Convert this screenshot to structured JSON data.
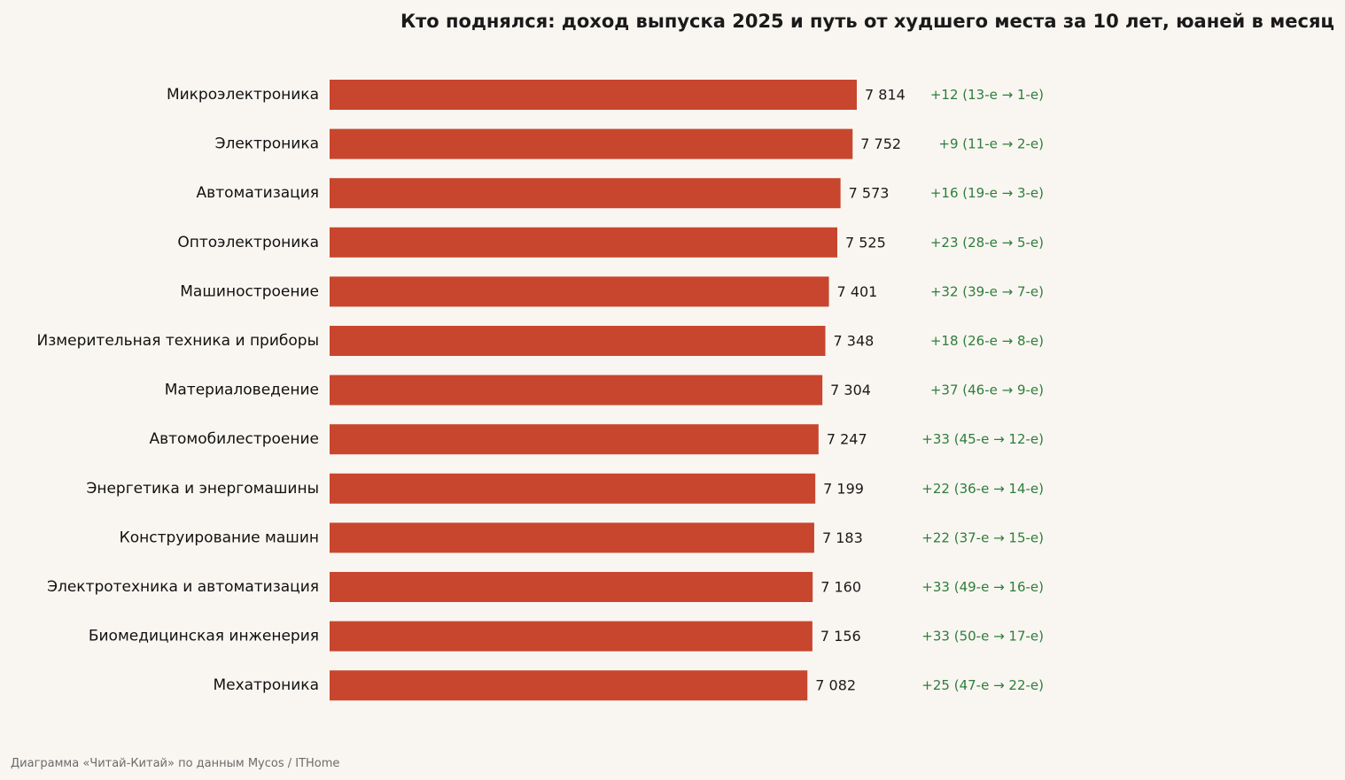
{
  "chart_data": {
    "type": "bar",
    "orientation": "horizontal",
    "title": "Кто поднялся: доход выпуска 2025 и путь от худшего места за 10 лет, юаней в месяц",
    "categories": [
      "Микроэлектроника",
      "Электроника",
      "Автоматизация",
      "Оптоэлектроника",
      "Машиностроение",
      "Измерительная техника и приборы",
      "Материаловедение",
      "Автомобилестроение",
      "Энергетика и энергомашины",
      "Конструирование машин",
      "Электротехника и автоматизация",
      "Биомедицинская инженерия",
      "Мехатроника"
    ],
    "values": [
      7814,
      7752,
      7573,
      7525,
      7401,
      7348,
      7304,
      7247,
      7199,
      7183,
      7160,
      7156,
      7082
    ],
    "value_labels": [
      "7 814",
      "7 752",
      "7 573",
      "7 525",
      "7 401",
      "7 348",
      "7 304",
      "7 247",
      "7 199",
      "7 183",
      "7 160",
      "7 156",
      "7 082"
    ],
    "annotations": [
      "+12 (13-е → 1-е)",
      "+9 (11-е → 2-е)",
      "+16 (19-е → 3-е)",
      "+23 (28-е → 5-е)",
      "+32 (39-е → 7-е)",
      "+18 (26-е → 8-е)",
      "+37 (46-е → 9-е)",
      "+33 (45-е → 12-е)",
      "+22 (36-е → 14-е)",
      "+22 (37-е → 15-е)",
      "+33 (49-е → 16-е)",
      "+33 (50-е → 17-е)",
      "+25 (47-е → 22-е)"
    ],
    "xlim": [
      0,
      10600
    ],
    "grid": false,
    "legend": "none",
    "source": "Диаграмма «Читай-Китай» по данным Mycos / ITHome",
    "colors": {
      "bar": "#c8462e",
      "annotation": "#2e7d3c",
      "background": "#f9f6f1",
      "text": "#1a1a1a",
      "source": "#6b6b6b"
    }
  }
}
